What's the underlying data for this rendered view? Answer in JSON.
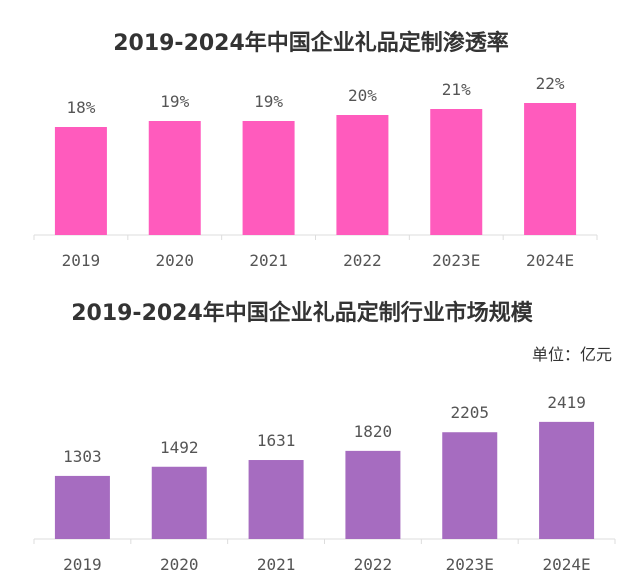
{
  "chart_data": [
    {
      "type": "bar",
      "title": "2019-2024年中国企业礼品定制渗透率",
      "categories": [
        "2019",
        "2020",
        "2021",
        "2022",
        "2023E",
        "2024E"
      ],
      "values": [
        18,
        19,
        19,
        20,
        21,
        22
      ],
      "value_labels": [
        "18%",
        "19%",
        "19%",
        "20%",
        "21%",
        "22%"
      ],
      "color": "#ff5bbd",
      "ylim": [
        0,
        25
      ],
      "grid": false,
      "legend": "none"
    },
    {
      "type": "bar",
      "title": "2019-2024年中国企业礼品定制行业市场规模",
      "unit": "单位：亿元",
      "categories": [
        "2019",
        "2020",
        "2021",
        "2022",
        "2023E",
        "2024E"
      ],
      "values": [
        1303,
        1492,
        1631,
        1820,
        2205,
        2419
      ],
      "value_labels": [
        "1303",
        "1492",
        "1631",
        "1820",
        "2205",
        "2419"
      ],
      "color": "#a66cc0",
      "ylim": [
        0,
        3800
      ],
      "grid": false,
      "legend": "none"
    }
  ]
}
